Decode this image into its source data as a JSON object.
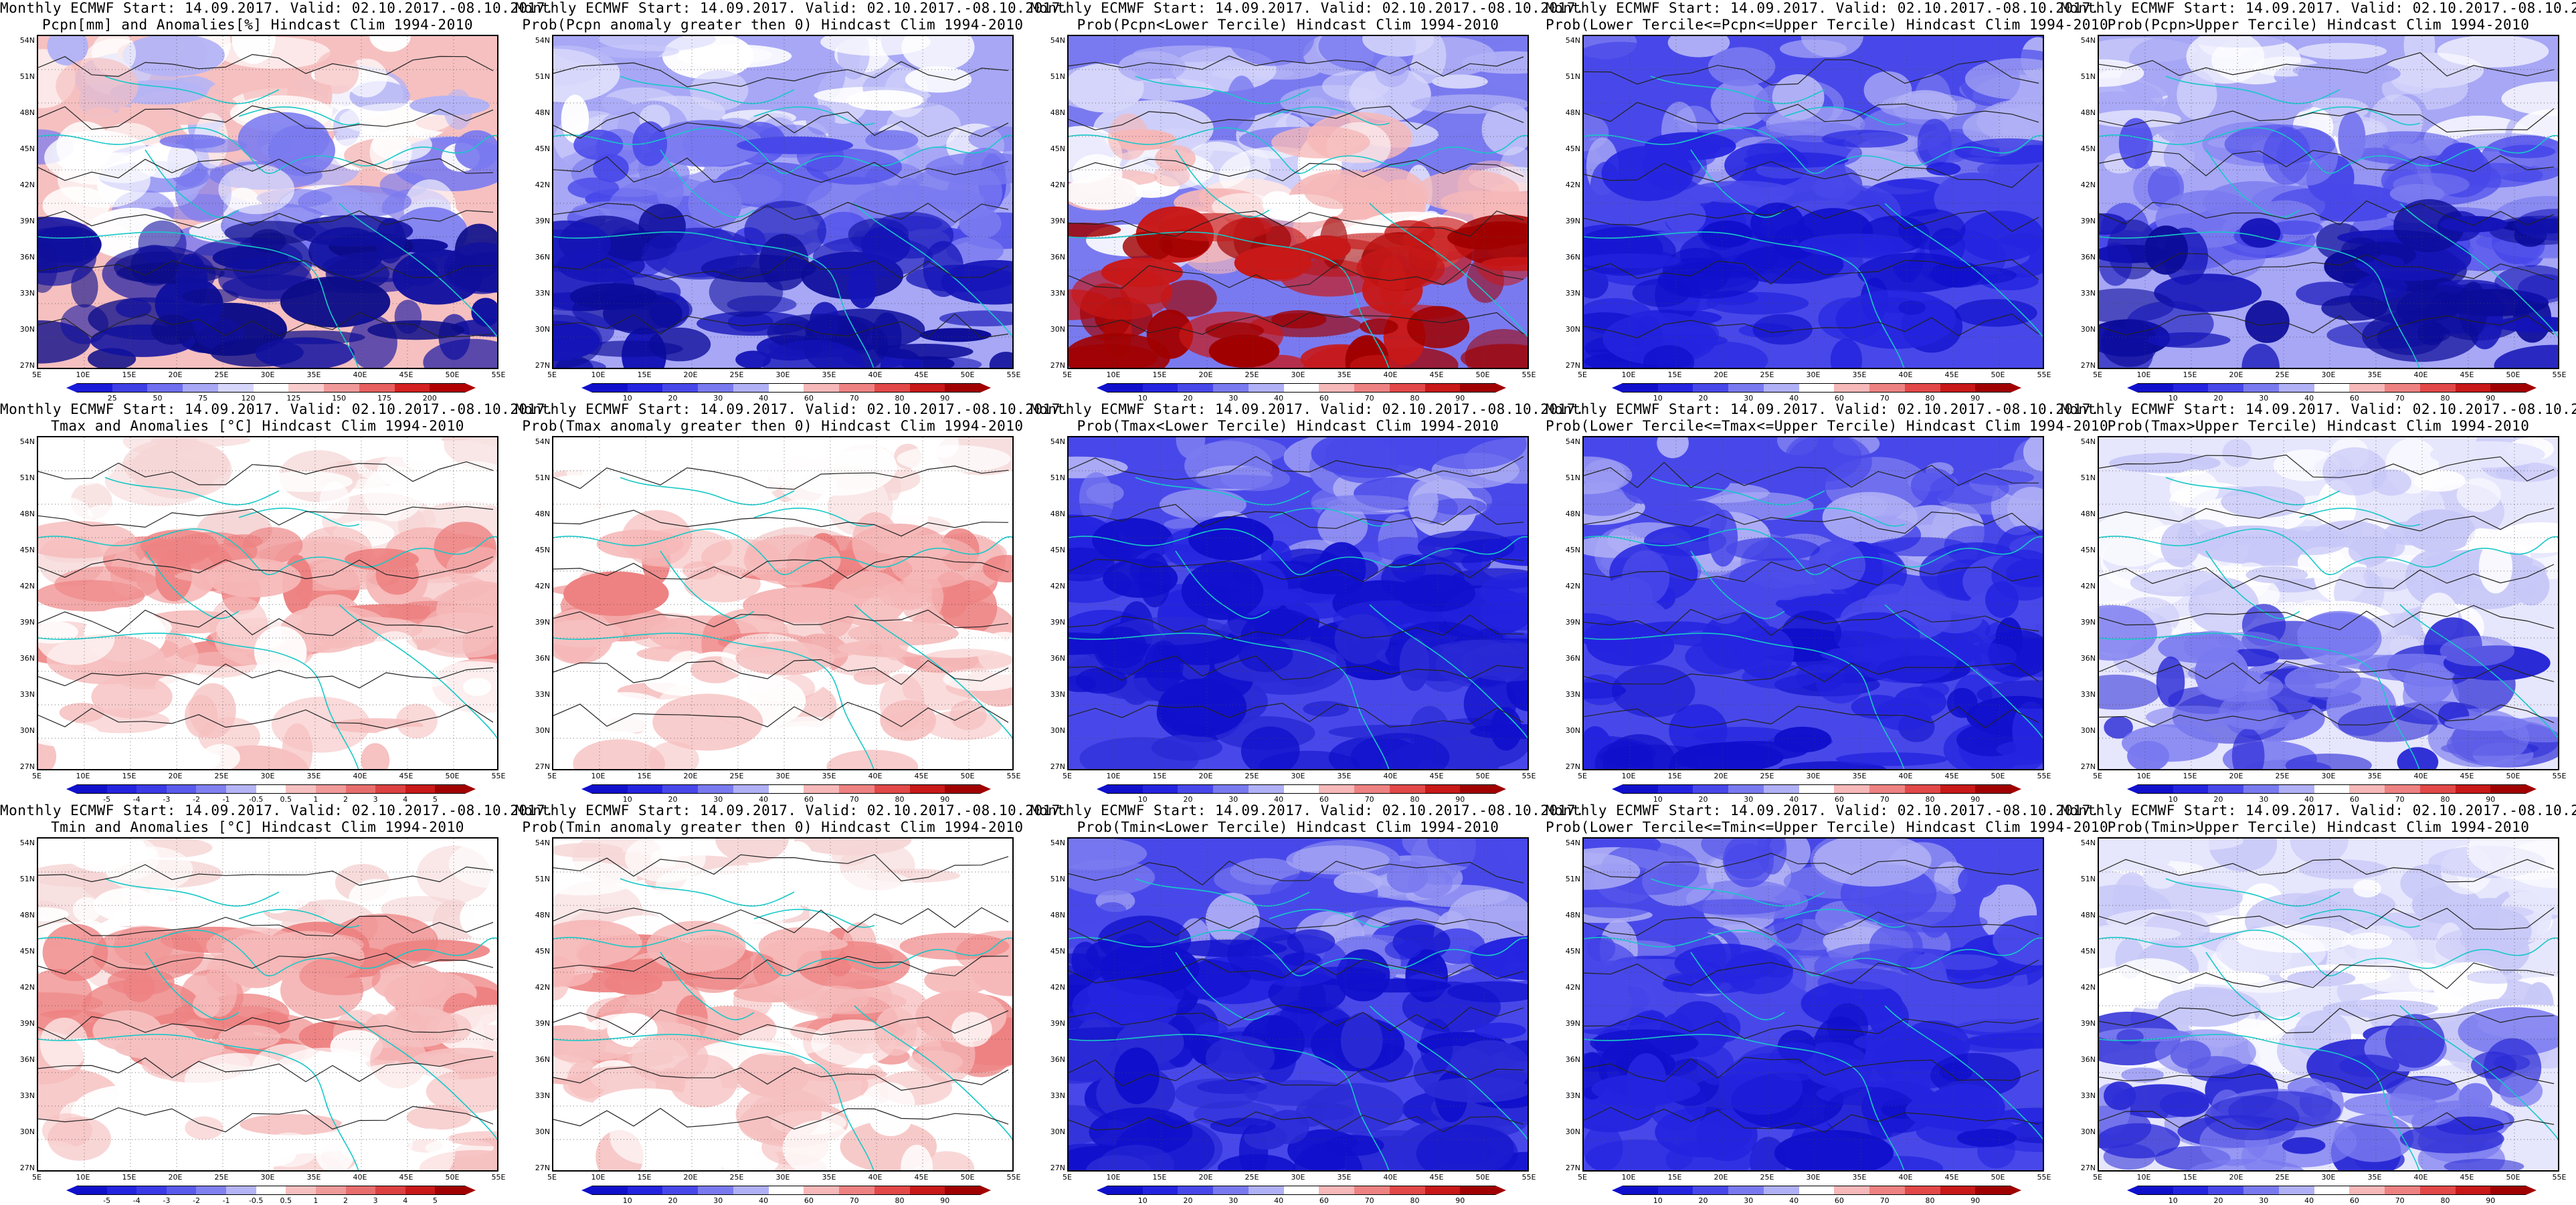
{
  "title_prefix": "Monthly ECMWF Start: 14.09.2017. Valid: 02.10.2017.-08.10.2017.",
  "lat_labels": [
    "54N",
    "51N",
    "48N",
    "45N",
    "42N",
    "39N",
    "36N",
    "33N",
    "30N",
    "27N"
  ],
  "lon_labels": [
    "5E",
    "10E",
    "15E",
    "20E",
    "25E",
    "30E",
    "35E",
    "40E",
    "45E",
    "50E",
    "55E"
  ],
  "colorbars": {
    "precip": {
      "labels": [
        "25",
        "50",
        "75",
        "120",
        "125",
        "150",
        "175",
        "200"
      ],
      "colors": [
        "#1a1ad9",
        "#3f3fe6",
        "#6f6fef",
        "#a7a7f6",
        "#d6d6fb",
        "#ffffff",
        "#f8cccc",
        "#f09999",
        "#e86060",
        "#d42020",
        "#b00000"
      ]
    },
    "prob": {
      "labels": [
        "10",
        "20",
        "30",
        "40",
        "60",
        "70",
        "80",
        "90"
      ],
      "colors": [
        "#1010cc",
        "#2424e0",
        "#4848ea",
        "#7a7af0",
        "#b0b0f6",
        "#ffffff",
        "#f6b8b8",
        "#ee8282",
        "#e24848",
        "#c81818",
        "#a00000"
      ]
    },
    "anom": {
      "labels": [
        "-5",
        "-4",
        "-3",
        "-2",
        "-1",
        "-0.5",
        "0.5",
        "1",
        "2",
        "3",
        "4",
        "5"
      ],
      "colors": [
        "#1010cc",
        "#2424e0",
        "#3a3ae6",
        "#5a5aec",
        "#8080f0",
        "#b4b4f6",
        "#ffffff",
        "#f6c0c0",
        "#f09a9a",
        "#e86e6e",
        "#dc4040",
        "#c81818",
        "#a00000"
      ]
    }
  },
  "panels": [
    {
      "line2": "Pcpn[mm] and Anomalies[%] Hindcast Clim 1994-2010",
      "bar": "precip",
      "scheme": "precip-anom"
    },
    {
      "line2": "Prob(Pcpn anomaly greater then 0) Hindcast Clim 1994-2010",
      "bar": "prob",
      "scheme": "blue"
    },
    {
      "line2": "Prob(Pcpn<Lower Tercile) Hindcast Clim 1994-2010",
      "bar": "prob",
      "scheme": "red-south"
    },
    {
      "line2": "Prob(Lower Tercile<=Pcpn<=Upper Tercile) Hindcast Clim 1994-2010",
      "bar": "prob",
      "scheme": "blue-mixed"
    },
    {
      "line2": "Prob(Pcpn>Upper Tercile) Hindcast Clim 1994-2010",
      "bar": "prob",
      "scheme": "blue"
    },
    {
      "line2": "Tmax and Anomalies [°C] Hindcast Clim 1994-2010",
      "bar": "anom",
      "scheme": "red-light"
    },
    {
      "line2": "Prob(Tmax anomaly greater then 0) Hindcast Clim 1994-2010",
      "bar": "prob",
      "scheme": "red-light"
    },
    {
      "line2": "Prob(Tmax<Lower Tercile) Hindcast Clim 1994-2010",
      "bar": "prob",
      "scheme": "blue-strong"
    },
    {
      "line2": "Prob(Lower Tercile<=Tmax<=Upper Tercile) Hindcast Clim 1994-2010",
      "bar": "prob",
      "scheme": "blue-mixed"
    },
    {
      "line2": "Prob(Tmax>Upper Tercile) Hindcast Clim 1994-2010",
      "bar": "prob",
      "scheme": "blue-light"
    },
    {
      "line2": "Tmin and Anomalies [°C] Hindcast Clim 1994-2010",
      "bar": "anom",
      "scheme": "red-light"
    },
    {
      "line2": "Prob(Tmin anomaly greater then 0) Hindcast Clim 1994-2010",
      "bar": "prob",
      "scheme": "red-light"
    },
    {
      "line2": "Prob(Tmin<Lower Tercile) Hindcast Clim 1994-2010",
      "bar": "prob",
      "scheme": "blue-strong"
    },
    {
      "line2": "Prob(Lower Tercile<=Tmin<=Upper Tercile) Hindcast Clim 1994-2010",
      "bar": "prob",
      "scheme": "blue-mixed"
    },
    {
      "line2": "Prob(Tmin>Upper Tercile) Hindcast Clim 1994-2010",
      "bar": "prob",
      "scheme": "blue-light"
    }
  ]
}
